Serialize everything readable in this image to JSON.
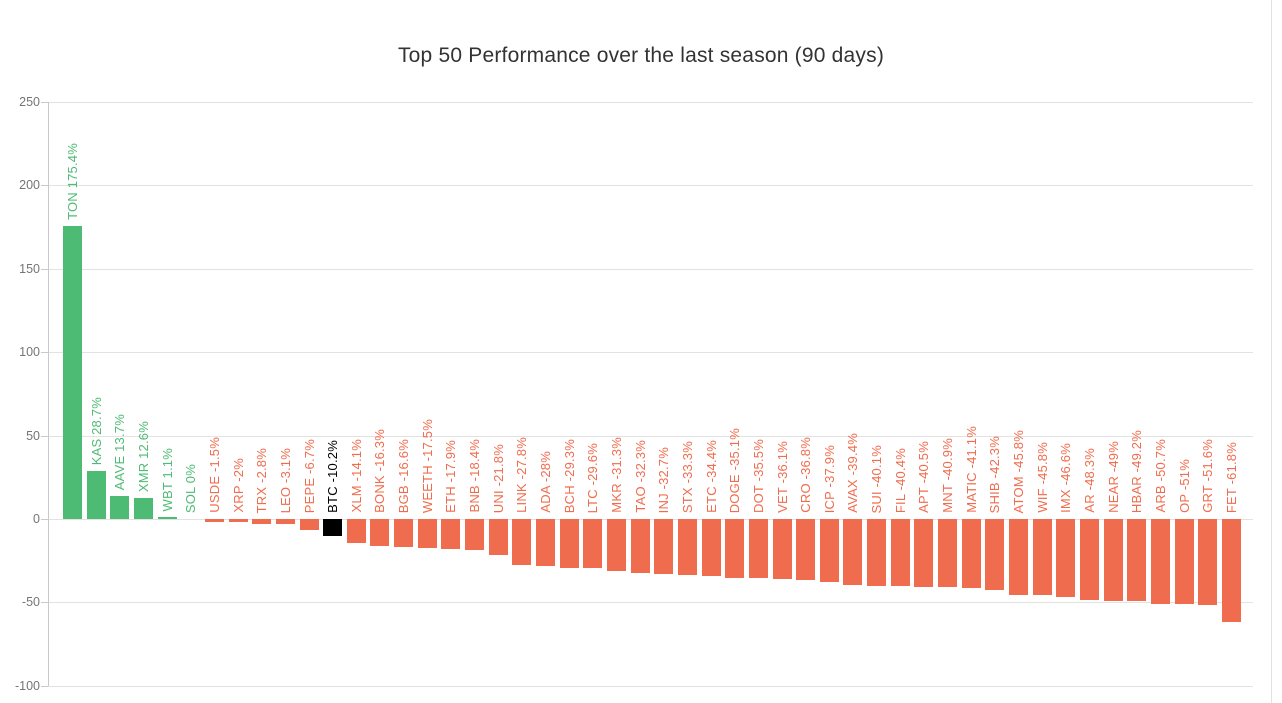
{
  "chart_data": {
    "type": "bar",
    "title": "Top 50 Performance over the last season (90 days)",
    "xlabel": "",
    "ylabel": "",
    "ylim": [
      -100,
      250
    ],
    "yticks": [
      250,
      200,
      150,
      100,
      50,
      0,
      -50,
      -100
    ],
    "grid": true,
    "legend": "none",
    "colors": {
      "positive": "#4ebb74",
      "negative": "#f06c4e",
      "highlight": "#000000",
      "gridline": "#e2e2e2",
      "axis_line": "#c9c9c9",
      "tick_label": "#757575",
      "title": "#333333",
      "background": "#ffffff"
    },
    "points": [
      {
        "symbol": "TON",
        "value": 175.4,
        "label": "TON 175.4%",
        "color": "positive"
      },
      {
        "symbol": "KAS",
        "value": 28.7,
        "label": "KAS 28.7%",
        "color": "positive"
      },
      {
        "symbol": "AAVE",
        "value": 13.7,
        "label": "AAVE 13.7%",
        "color": "positive"
      },
      {
        "symbol": "XMR",
        "value": 12.6,
        "label": "XMR 12.6%",
        "color": "positive"
      },
      {
        "symbol": "WBT",
        "value": 1.1,
        "label": "WBT 1.1%",
        "color": "positive"
      },
      {
        "symbol": "SOL",
        "value": 0,
        "label": "SOL 0%",
        "color": "positive"
      },
      {
        "symbol": "USDE",
        "value": -1.5,
        "label": "USDE -1.5%",
        "color": "negative"
      },
      {
        "symbol": "XRP",
        "value": -2,
        "label": "XRP -2%",
        "color": "negative"
      },
      {
        "symbol": "TRX",
        "value": -2.8,
        "label": "TRX -2.8%",
        "color": "negative"
      },
      {
        "symbol": "LEO",
        "value": -3.1,
        "label": "LEO -3.1%",
        "color": "negative"
      },
      {
        "symbol": "PEPE",
        "value": -6.7,
        "label": "PEPE -6.7%",
        "color": "negative"
      },
      {
        "symbol": "BTC",
        "value": -10.2,
        "label": "BTC -10.2%",
        "color": "highlight"
      },
      {
        "symbol": "XLM",
        "value": -14.1,
        "label": "XLM -14.1%",
        "color": "negative"
      },
      {
        "symbol": "BONK",
        "value": -16.3,
        "label": "BONK -16.3%",
        "color": "negative"
      },
      {
        "symbol": "BGB",
        "value": -16.6,
        "label": "BGB -16.6%",
        "color": "negative"
      },
      {
        "symbol": "WEETH",
        "value": -17.5,
        "label": "WEETH -17.5%",
        "color": "negative"
      },
      {
        "symbol": "ETH",
        "value": -17.9,
        "label": "ETH -17.9%",
        "color": "negative"
      },
      {
        "symbol": "BNB",
        "value": -18.4,
        "label": "BNB -18.4%",
        "color": "negative"
      },
      {
        "symbol": "UNI",
        "value": -21.8,
        "label": "UNI -21.8%",
        "color": "negative"
      },
      {
        "symbol": "LINK",
        "value": -27.8,
        "label": "LINK -27.8%",
        "color": "negative"
      },
      {
        "symbol": "ADA",
        "value": -28,
        "label": "ADA -28%",
        "color": "negative"
      },
      {
        "symbol": "BCH",
        "value": -29.3,
        "label": "BCH -29.3%",
        "color": "negative"
      },
      {
        "symbol": "LTC",
        "value": -29.6,
        "label": "LTC -29.6%",
        "color": "negative"
      },
      {
        "symbol": "MKR",
        "value": -31.3,
        "label": "MKR -31.3%",
        "color": "negative"
      },
      {
        "symbol": "TAO",
        "value": -32.3,
        "label": "TAO -32.3%",
        "color": "negative"
      },
      {
        "symbol": "INJ",
        "value": -32.7,
        "label": "INJ -32.7%",
        "color": "negative"
      },
      {
        "symbol": "STX",
        "value": -33.3,
        "label": "STX -33.3%",
        "color": "negative"
      },
      {
        "symbol": "ETC",
        "value": -34.4,
        "label": "ETC -34.4%",
        "color": "negative"
      },
      {
        "symbol": "DOGE",
        "value": -35.1,
        "label": "DOGE -35.1%",
        "color": "negative"
      },
      {
        "symbol": "DOT",
        "value": -35.5,
        "label": "DOT -35.5%",
        "color": "negative"
      },
      {
        "symbol": "VET",
        "value": -36.1,
        "label": "VET -36.1%",
        "color": "negative"
      },
      {
        "symbol": "CRO",
        "value": -36.8,
        "label": "CRO -36.8%",
        "color": "negative"
      },
      {
        "symbol": "ICP",
        "value": -37.9,
        "label": "ICP -37.9%",
        "color": "negative"
      },
      {
        "symbol": "AVAX",
        "value": -39.4,
        "label": "AVAX -39.4%",
        "color": "negative"
      },
      {
        "symbol": "SUI",
        "value": -40.1,
        "label": "SUI -40.1%",
        "color": "negative"
      },
      {
        "symbol": "FIL",
        "value": -40.4,
        "label": "FIL -40.4%",
        "color": "negative"
      },
      {
        "symbol": "APT",
        "value": -40.5,
        "label": "APT -40.5%",
        "color": "negative"
      },
      {
        "symbol": "MNT",
        "value": -40.9,
        "label": "MNT -40.9%",
        "color": "negative"
      },
      {
        "symbol": "MATIC",
        "value": -41.1,
        "label": "MATIC -41.1%",
        "color": "negative"
      },
      {
        "symbol": "SHIB",
        "value": -42.3,
        "label": "SHIB -42.3%",
        "color": "negative"
      },
      {
        "symbol": "ATOM",
        "value": -45.8,
        "label": "ATOM -45.8%",
        "color": "negative"
      },
      {
        "symbol": "WIF",
        "value": -45.8,
        "label": "WIF -45.8%",
        "color": "negative"
      },
      {
        "symbol": "IMX",
        "value": -46.6,
        "label": "IMX -46.6%",
        "color": "negative"
      },
      {
        "symbol": "AR",
        "value": -48.3,
        "label": "AR -48.3%",
        "color": "negative"
      },
      {
        "symbol": "NEAR",
        "value": -49,
        "label": "NEAR -49%",
        "color": "negative"
      },
      {
        "symbol": "HBAR",
        "value": -49.2,
        "label": "HBAR -49.2%",
        "color": "negative"
      },
      {
        "symbol": "ARB",
        "value": -50.7,
        "label": "ARB -50.7%",
        "color": "negative"
      },
      {
        "symbol": "OP",
        "value": -51,
        "label": "OP -51%",
        "color": "negative"
      },
      {
        "symbol": "GRT",
        "value": -51.6,
        "label": "GRT -51.6%",
        "color": "negative"
      },
      {
        "symbol": "FET",
        "value": -61.8,
        "label": "FET -61.8%",
        "color": "negative"
      }
    ]
  }
}
